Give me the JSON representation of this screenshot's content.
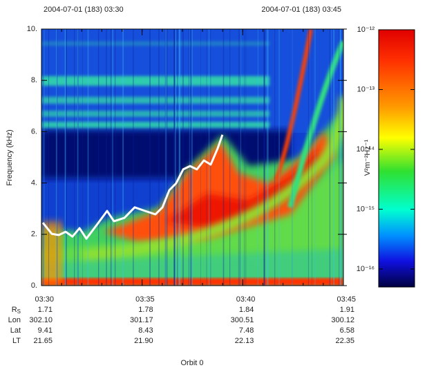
{
  "chart_data": {
    "type": "line",
    "header_left": "2004-07-01 (183) 03:30",
    "header_right": "2004-07-01 (183) 03:45",
    "ylabel": "Frequency (kHz)",
    "footer": "Orbit 0",
    "xlim": [
      30,
      45
    ],
    "xticks": [
      {
        "value": 30,
        "label": "03:30"
      },
      {
        "value": 35,
        "label": "03:35"
      },
      {
        "value": 40,
        "label": "03:40"
      },
      {
        "value": 45,
        "label": "03:45"
      }
    ],
    "ylim": [
      0,
      10
    ],
    "yticks": [
      {
        "value": 0,
        "label": "0."
      },
      {
        "value": 2,
        "label": "2."
      },
      {
        "value": 4,
        "label": "4."
      },
      {
        "value": 6,
        "label": "6."
      },
      {
        "value": 8,
        "label": "8."
      },
      {
        "value": 10,
        "label": "10."
      }
    ],
    "series": [
      {
        "color": "#ffffff",
        "x": [
          30.07,
          30.51,
          30.86,
          31.2,
          31.54,
          31.89,
          32.23,
          32.75,
          33.26,
          33.6,
          34.12,
          34.63,
          35.15,
          35.66,
          36.01,
          36.35,
          36.69,
          37.04,
          37.38,
          37.72,
          38.07,
          38.41,
          38.75,
          38.99
        ],
        "values": [
          2.45,
          2.02,
          1.97,
          2.1,
          1.91,
          2.24,
          1.83,
          2.37,
          2.91,
          2.51,
          2.64,
          3.05,
          2.91,
          2.78,
          3.05,
          3.72,
          3.99,
          4.53,
          4.66,
          4.53,
          4.88,
          4.72,
          5.34,
          5.88
        ]
      }
    ],
    "ephemeris": [
      {
        "label": "R",
        "subscript": "S",
        "values": [
          "1.71",
          "1.78",
          "1.84",
          "1.91"
        ]
      },
      {
        "label": "Lon",
        "values": [
          "302.10",
          "301.17",
          "300.51",
          "300.12"
        ]
      },
      {
        "label": "Lat",
        "values": [
          "9.41",
          "8.43",
          "7.48",
          "6.58"
        ]
      },
      {
        "label": "LT",
        "values": [
          "21.65",
          "21.90",
          "22.13",
          "22.35"
        ]
      }
    ],
    "colorbar": {
      "log": true,
      "lim": [
        5e-17,
        1e-12
      ],
      "label": "V²m⁻²Hz⁻¹",
      "ticks": [
        {
          "value": 1e-12,
          "label": "10⁻¹²"
        },
        {
          "value": 1e-13,
          "label": "10⁻¹³"
        },
        {
          "value": 1e-14,
          "label": "10⁻¹⁴"
        },
        {
          "value": 1e-15,
          "label": "10⁻¹⁵"
        },
        {
          "value": 1e-16,
          "label": "10⁻¹⁶"
        }
      ]
    }
  }
}
